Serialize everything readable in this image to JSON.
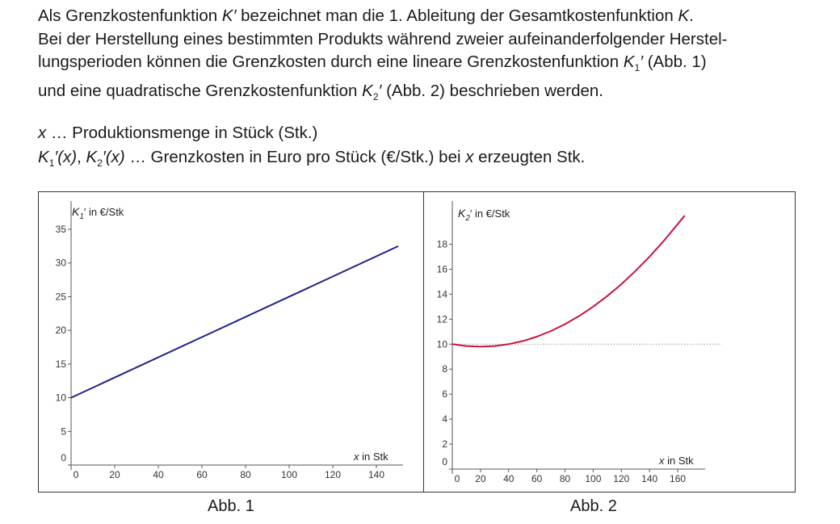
{
  "intro": {
    "line1_a": "Als Grenzkostenfunktion ",
    "line1_sym1": "K′",
    "line1_b": " bezeichnet man die 1. Ableitung der Gesamtkostenfunktion ",
    "line1_sym2": "K",
    "line1_c": ".",
    "line2": "Bei der Herstellung eines bestimmten Produkts während zweier aufeinanderfolgender Herstel-",
    "line3_a": "lungsperioden können die Grenzkosten durch eine lineare Grenzkostenfunktion ",
    "line3_sym": "K",
    "line3_sub": "1",
    "line3_prime": "′",
    "line3_b": " (Abb. 1)",
    "line4_a": "und eine quadratische Grenzkostenfunktion ",
    "line4_sym": "K",
    "line4_sub": "2",
    "line4_prime": "′",
    "line4_b": " (Abb. 2) beschrieben werden."
  },
  "definitions": {
    "x_sym": "x",
    "x_text": " … Produktionsmenge in Stück (Stk.)",
    "k_sym1": "K",
    "k_sub1": "1",
    "k_arg1": "′(x)",
    "k_sep": ", ",
    "k_sym2": "K",
    "k_sub2": "2",
    "k_arg2": "′(x)",
    "k_text_a": " … Grenzkosten in Euro pro Stück (€/Stk.) bei ",
    "k_x": "x",
    "k_text_b": " erzeugten Stk."
  },
  "captions": {
    "fig1": "Abb. 1",
    "fig2": "Abb. 2"
  },
  "colors": {
    "line1": "#1f1f8c",
    "line2": "#c8143c",
    "axis": "#555555",
    "frame": "#333333",
    "dotted": "#999999"
  },
  "chart_data": [
    {
      "type": "line",
      "ylabel_sym": "K",
      "ylabel_sub": "1",
      "ylabel_rest": "′ in €/Stk",
      "xlabel_sym": "x",
      "xlabel_rest": " in Stk",
      "xlim": [
        0,
        150
      ],
      "ylim": [
        0,
        35
      ],
      "x_ticks": [
        "0",
        "20",
        "40",
        "60",
        "80",
        "100",
        "120",
        "140"
      ],
      "y_ticks": [
        "0",
        "5",
        "10",
        "15",
        "20",
        "25",
        "30",
        "35"
      ],
      "x_tick_values": [
        0,
        20,
        40,
        60,
        80,
        100,
        120,
        140
      ],
      "y_tick_values": [
        0,
        5,
        10,
        15,
        20,
        25,
        30,
        35
      ],
      "grid": false,
      "series": [
        {
          "x": [
            0,
            150
          ],
          "y": [
            10,
            32.5
          ]
        }
      ]
    },
    {
      "type": "line",
      "ylabel_sym": "K",
      "ylabel_sub": "2",
      "ylabel_rest": "′ in €/Stk",
      "xlabel_sym": "x",
      "xlabel_rest": " in Stk",
      "xlim": [
        0,
        168
      ],
      "ylim": [
        0,
        19
      ],
      "x_ticks": [
        "0",
        "20",
        "40",
        "60",
        "80",
        "100",
        "120",
        "140",
        "160"
      ],
      "y_ticks": [
        "0",
        "2",
        "4",
        "6",
        "8",
        "10",
        "12",
        "14",
        "16",
        "18"
      ],
      "x_tick_values": [
        0,
        20,
        40,
        60,
        80,
        100,
        120,
        140,
        160
      ],
      "y_tick_values": [
        0,
        2,
        4,
        6,
        8,
        10,
        12,
        14,
        16,
        18
      ],
      "grid": false,
      "reference_line_y": 10,
      "series": [
        {
          "x": [
            0,
            10,
            20,
            30,
            40,
            50,
            60,
            70,
            80,
            90,
            100,
            110,
            120,
            130,
            140,
            150,
            160,
            165
          ],
          "y": [
            10,
            9.85,
            9.8,
            9.85,
            10,
            10.25,
            10.6,
            11.05,
            11.6,
            12.25,
            13,
            13.85,
            14.8,
            15.85,
            17,
            18.25,
            19.6,
            20.3
          ]
        }
      ]
    }
  ]
}
